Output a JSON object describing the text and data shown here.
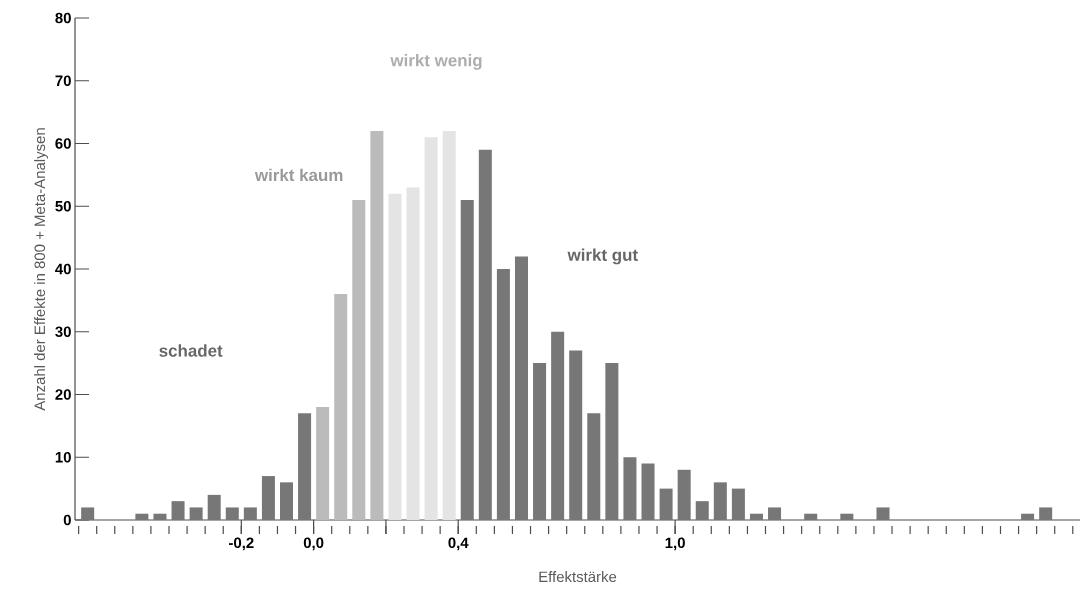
{
  "chart_data": {
    "type": "histogram",
    "xlabel": "Effektstärke",
    "ylabel": "Anzahl der Effekte in 800 + Meta-Analysen",
    "bins": [
      -0.65,
      -0.6,
      -0.55,
      -0.5,
      -0.45,
      -0.4,
      -0.35,
      -0.3,
      -0.25,
      -0.2,
      -0.15,
      -0.1,
      -0.05,
      0,
      0.05,
      0.1,
      0.15,
      0.2,
      0.25,
      0.3,
      0.35,
      0.4,
      0.45,
      0.5,
      0.55,
      0.6,
      0.65,
      0.7,
      0.75,
      0.8,
      0.85,
      0.9,
      0.95,
      1.0,
      1.05,
      1.1,
      1.15,
      1.2,
      1.25,
      1.3,
      1.35,
      1.4,
      1.45,
      1.5,
      1.55,
      1.6,
      1.65,
      1.7,
      1.75,
      1.8,
      1.85,
      1.9,
      1.95,
      2.0,
      2.05,
      2.1
    ],
    "values": [
      2,
      0,
      0,
      1,
      1,
      3,
      2,
      4,
      2,
      2,
      7,
      6,
      17,
      18,
      36,
      51,
      62,
      52,
      53,
      61,
      62,
      51,
      59,
      40,
      42,
      25,
      30,
      27,
      17,
      25,
      10,
      9,
      5,
      8,
      3,
      6,
      5,
      1,
      2,
      0,
      1,
      0,
      1,
      0,
      2,
      0,
      0,
      0,
      0,
      0,
      0,
      0,
      1,
      2,
      0
    ],
    "colors": [
      "#777777",
      "#777777",
      "#777777",
      "#777777",
      "#777777",
      "#777777",
      "#777777",
      "#777777",
      "#777777",
      "#777777",
      "#777777",
      "#777777",
      "#777777",
      "#bbbbbb",
      "#bbbbbb",
      "#bbbbbb",
      "#bbbbbb",
      "#e4e4e4",
      "#e4e4e4",
      "#e4e4e4",
      "#e4e4e4",
      "#777777",
      "#777777",
      "#777777",
      "#777777",
      "#777777",
      "#777777",
      "#777777",
      "#777777",
      "#777777",
      "#777777",
      "#777777",
      "#777777",
      "#777777",
      "#777777",
      "#777777",
      "#777777",
      "#777777",
      "#777777",
      "#777777",
      "#777777",
      "#777777",
      "#777777",
      "#777777",
      "#777777",
      "#777777",
      "#777777",
      "#777777",
      "#777777",
      "#777777",
      "#777777",
      "#777777",
      "#777777",
      "#777777",
      "#777777"
    ],
    "xlim": [
      -0.66,
      2.12
    ],
    "ylim": [
      0,
      80
    ],
    "xticks": [
      {
        "value": -0.2,
        "label": "-0,2"
      },
      {
        "value": 0.0,
        "label": "0,0"
      },
      {
        "value": 0.2,
        "label": null
      },
      {
        "value": 0.4,
        "label": "0,4"
      },
      {
        "value": 1.0,
        "label": "1,0"
      }
    ],
    "yticks": [
      0,
      10,
      20,
      30,
      40,
      50,
      60,
      70,
      80
    ],
    "annotations": [
      "schadet",
      "wirkt kaum",
      "wirkt wenig",
      "wirkt gut"
    ]
  }
}
